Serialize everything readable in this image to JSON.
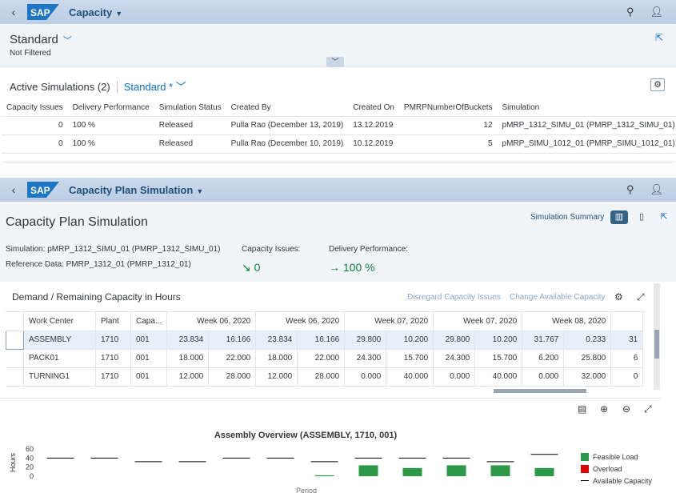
{
  "app1": {
    "title": "Capacity",
    "variant": "Standard",
    "filter_status": "Not Filtered",
    "table_title": "Active Simulations (2)",
    "table_variant": "Standard *",
    "columns": [
      "Capacity Issues",
      "Delivery Performance",
      "Simulation Status",
      "Created By",
      "Created On",
      "PMRPNumberOfBuckets",
      "Simulation"
    ],
    "rows": [
      [
        "0",
        "100 %",
        "Released",
        "Pulla Rao (December 13, 2019)",
        "13.12.2019",
        "12",
        "pMRP_1312_SIMU_01 (PMRP_1312_SIMU_01)"
      ],
      [
        "0",
        "100 %",
        "Released",
        "Pulla Rao (December 10, 2019)",
        "10.12.2019",
        "5",
        "pMRP_SIMU_1012_01 (PMRP_SIMU_1012_01)"
      ]
    ]
  },
  "app2": {
    "title": "Capacity Plan Simulation",
    "page_title": "Capacity Plan Simulation",
    "summary_label": "Simulation Summary",
    "simulation_label": "Simulation:",
    "simulation_value": "pMRP_1312_SIMU_01 (PMRP_1312_SIMU_01)",
    "reference_label": "Reference Data:",
    "reference_value": "PMRP_1312_01 (PMRP_1312_01)",
    "capacity_issues_label": "Capacity Issues:",
    "capacity_issues_value": "0",
    "delivery_label": "Delivery Performance:",
    "delivery_value": "100 %",
    "demand_title": "Demand / Remaining Capacity in Hours",
    "disregard_label": "Disregard Capacity Issues",
    "change_label": "Change Available Capacity",
    "grid_columns": [
      "Work Center",
      "Plant",
      "Capa...",
      "Week 06, 2020",
      "Week 06, 2020",
      "Week 07, 2020",
      "Week 07, 2020",
      "Week 08, 2020"
    ],
    "grid_rows": [
      [
        "ASSEMBLY",
        "1710",
        "001",
        "23.834",
        "16.166",
        "23.834",
        "16.166",
        "29.800",
        "10.200",
        "29.800",
        "10.200",
        "31.767",
        "0.233",
        "31"
      ],
      [
        "PACK01",
        "1710",
        "001",
        "18.000",
        "22.000",
        "18.000",
        "22.000",
        "24.300",
        "15.700",
        "24.300",
        "15.700",
        "6.200",
        "25.800",
        "6"
      ],
      [
        "TURNING1",
        "1710",
        "001",
        "12.000",
        "28.000",
        "12.000",
        "28.000",
        "0.000",
        "40.000",
        "0.000",
        "40.000",
        "0.000",
        "32.000",
        "0"
      ]
    ]
  },
  "chart_data": {
    "type": "bar",
    "title": "Assembly Overview (ASSEMBLY, 1710, 001)",
    "xlabel": "Period",
    "ylabel": "Hours",
    "ylim": [
      0,
      60
    ],
    "yticks": [
      "60",
      "40",
      "20",
      "0"
    ],
    "series": [
      {
        "name": "Feasible Load",
        "color": "#2b9948",
        "values": [
          0,
          0,
          0,
          0,
          0,
          0,
          2,
          24,
          18,
          24,
          24,
          18
        ]
      },
      {
        "name": "Overload",
        "color": "#e00000",
        "values": [
          0,
          0,
          0,
          0,
          0,
          0,
          0,
          0,
          0,
          0,
          0,
          0
        ]
      },
      {
        "name": "Available Capacity",
        "color": "#000000",
        "values": [
          40,
          40,
          32,
          32,
          40,
          40,
          32,
          40,
          40,
          40,
          32,
          48
        ]
      }
    ],
    "legend": "right"
  }
}
